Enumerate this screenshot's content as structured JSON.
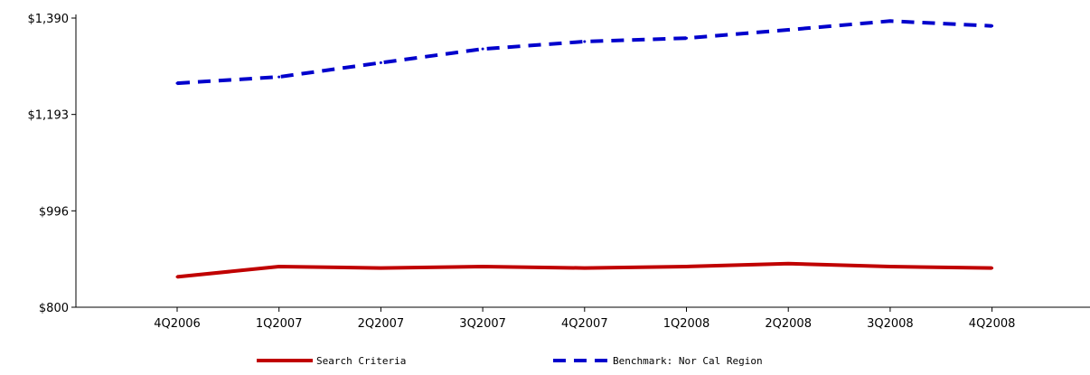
{
  "chart_data": {
    "type": "line",
    "title": "",
    "xlabel": "",
    "ylabel": "",
    "categories": [
      "4Q2006",
      "1Q2007",
      "2Q2007",
      "3Q2007",
      "4Q2007",
      "1Q2008",
      "2Q2008",
      "3Q2008",
      "4Q2008"
    ],
    "y_ticks": [
      "$800",
      "$996",
      "$1,193",
      "$1,390"
    ],
    "ylim": [
      800,
      1390
    ],
    "grid": false,
    "legend_position": "bottom",
    "series": [
      {
        "name": "Search Criteria",
        "color": "#c00000",
        "style": "solid",
        "values": [
          862,
          883,
          880,
          883,
          880,
          883,
          889,
          883,
          880
        ]
      },
      {
        "name": "Benchmark: Nor Cal Region",
        "color": "#0000cc",
        "style": "dashed",
        "values": [
          1257,
          1270,
          1299,
          1327,
          1342,
          1349,
          1366,
          1384,
          1374
        ]
      }
    ]
  }
}
